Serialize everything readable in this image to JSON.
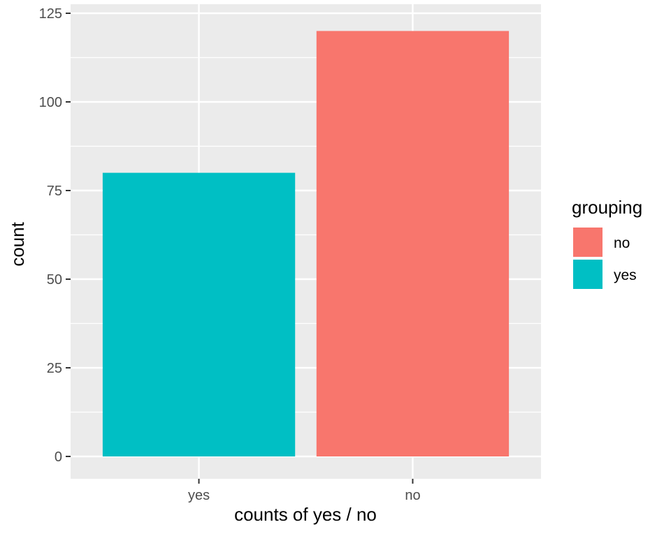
{
  "chart_data": {
    "type": "bar",
    "categories": [
      "yes",
      "no"
    ],
    "values": [
      80,
      120
    ],
    "bar_groups": [
      "yes",
      "no"
    ],
    "xlabel": "counts of yes / no",
    "ylabel": "count",
    "ylim": [
      -6,
      125
    ],
    "yticks": [
      0,
      25,
      50,
      75,
      100,
      125
    ],
    "grid": true,
    "legend": {
      "title": "grouping",
      "position": "right",
      "entries": [
        {
          "label": "no",
          "color": "#F8766D"
        },
        {
          "label": "yes",
          "color": "#00BFC4"
        }
      ]
    },
    "colors": {
      "no": "#F8766D",
      "yes": "#00BFC4",
      "panel_background": "#EBEBEB",
      "grid": "#FFFFFF"
    }
  }
}
